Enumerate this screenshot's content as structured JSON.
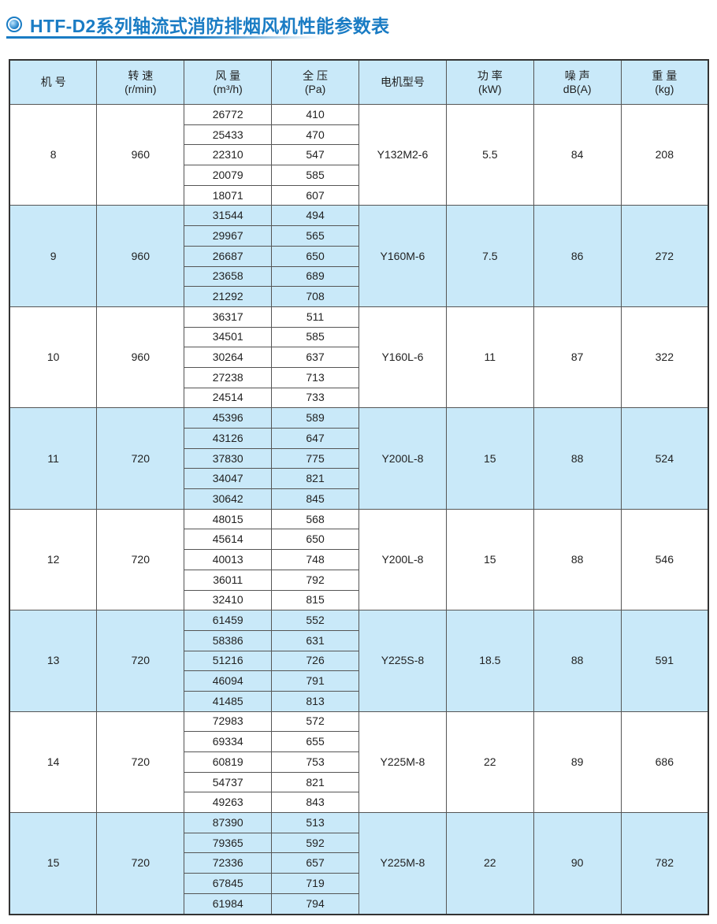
{
  "title": "HTF-D2系列轴流式消防排烟风机性能参数表",
  "colors": {
    "accent": "#1a7cc4",
    "band": "#c9e9f9"
  },
  "headers": [
    {
      "line1": "机 号",
      "line2": ""
    },
    {
      "line1": "转 速",
      "line2": "(r/min)"
    },
    {
      "line1": "风 量",
      "line2": "(m³/h)"
    },
    {
      "line1": "全 压",
      "line2": "(Pa)"
    },
    {
      "line1": "电机型号",
      "line2": ""
    },
    {
      "line1": "功 率",
      "line2": "(kW)"
    },
    {
      "line1": "噪 声",
      "line2": "dB(A)"
    },
    {
      "line1": "重 量",
      "line2": "(kg)"
    }
  ],
  "rows": [
    {
      "no": "8",
      "speed": "960",
      "flow": [
        "26772",
        "25433",
        "22310",
        "20079",
        "18071"
      ],
      "pressure": [
        "410",
        "470",
        "547",
        "585",
        "607"
      ],
      "motor": "Y132M2-6",
      "power": "5.5",
      "noise": "84",
      "weight": "208"
    },
    {
      "no": "9",
      "speed": "960",
      "flow": [
        "31544",
        "29967",
        "26687",
        "23658",
        "21292"
      ],
      "pressure": [
        "494",
        "565",
        "650",
        "689",
        "708"
      ],
      "motor": "Y160M-6",
      "power": "7.5",
      "noise": "86",
      "weight": "272"
    },
    {
      "no": "10",
      "speed": "960",
      "flow": [
        "36317",
        "34501",
        "30264",
        "27238",
        "24514"
      ],
      "pressure": [
        "511",
        "585",
        "637",
        "713",
        "733"
      ],
      "motor": "Y160L-6",
      "power": "11",
      "noise": "87",
      "weight": "322"
    },
    {
      "no": "11",
      "speed": "720",
      "flow": [
        "45396",
        "43126",
        "37830",
        "34047",
        "30642"
      ],
      "pressure": [
        "589",
        "647",
        "775",
        "821",
        "845"
      ],
      "motor": "Y200L-8",
      "power": "15",
      "noise": "88",
      "weight": "524"
    },
    {
      "no": "12",
      "speed": "720",
      "flow": [
        "48015",
        "45614",
        "40013",
        "36011",
        "32410"
      ],
      "pressure": [
        "568",
        "650",
        "748",
        "792",
        "815"
      ],
      "motor": "Y200L-8",
      "power": "15",
      "noise": "88",
      "weight": "546"
    },
    {
      "no": "13",
      "speed": "720",
      "flow": [
        "61459",
        "58386",
        "51216",
        "46094",
        "41485"
      ],
      "pressure": [
        "552",
        "631",
        "726",
        "791",
        "813"
      ],
      "motor": "Y225S-8",
      "power": "18.5",
      "noise": "88",
      "weight": "591"
    },
    {
      "no": "14",
      "speed": "720",
      "flow": [
        "72983",
        "69334",
        "60819",
        "54737",
        "49263"
      ],
      "pressure": [
        "572",
        "655",
        "753",
        "821",
        "843"
      ],
      "motor": "Y225M-8",
      "power": "22",
      "noise": "89",
      "weight": "686"
    },
    {
      "no": "15",
      "speed": "720",
      "flow": [
        "87390",
        "79365",
        "72336",
        "67845",
        "61984"
      ],
      "pressure": [
        "513",
        "592",
        "657",
        "719",
        "794"
      ],
      "motor": "Y225M-8",
      "power": "22",
      "noise": "90",
      "weight": "782"
    }
  ]
}
